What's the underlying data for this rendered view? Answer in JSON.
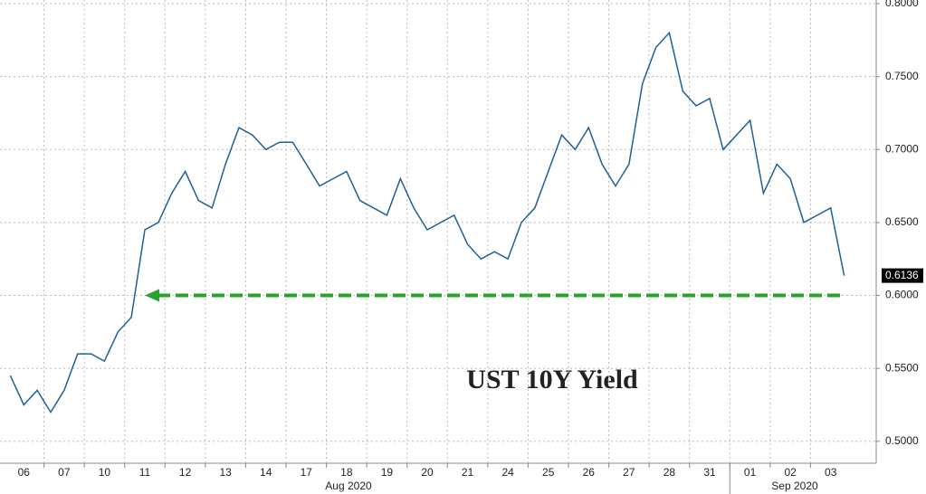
{
  "chart_data": {
    "type": "line",
    "categories": [
      null,
      "06",
      null,
      null,
      "07",
      null,
      null,
      "10",
      null,
      null,
      "11",
      null,
      null,
      "12",
      null,
      null,
      "13",
      null,
      null,
      "14",
      null,
      null,
      "17",
      null,
      null,
      "18",
      null,
      null,
      "19",
      null,
      null,
      "20",
      null,
      null,
      "21",
      null,
      null,
      "24",
      null,
      null,
      "25",
      null,
      null,
      "26",
      null,
      null,
      "27",
      null,
      null,
      "28",
      null,
      null,
      "31",
      null,
      null,
      "01",
      null,
      null,
      "02",
      null,
      null,
      "03",
      null
    ],
    "x_groups": [
      "Aug 2020",
      "Sep 2020"
    ],
    "series": [
      {
        "name": "UST 10Y Yield",
        "color": "#1f5f99",
        "values": [
          0.545,
          0.525,
          0.535,
          0.52,
          0.535,
          0.56,
          0.56,
          0.555,
          0.575,
          0.585,
          0.645,
          0.65,
          0.67,
          0.685,
          0.665,
          0.66,
          0.69,
          0.715,
          0.71,
          0.7,
          0.705,
          0.705,
          0.69,
          0.675,
          0.68,
          0.685,
          0.665,
          0.66,
          0.655,
          0.68,
          0.66,
          0.645,
          0.65,
          0.655,
          0.635,
          0.625,
          0.63,
          0.625,
          0.65,
          0.66,
          0.685,
          0.71,
          0.7,
          0.715,
          0.69,
          0.675,
          0.69,
          0.745,
          0.77,
          0.78,
          0.74,
          0.73,
          0.735,
          0.7,
          0.71,
          0.72,
          0.67,
          0.69,
          0.68,
          0.65,
          0.655,
          0.66,
          0.6136
        ]
      }
    ],
    "annotation": "UST 10Y Yield",
    "reference_line": {
      "value": 0.6,
      "color": "#2ca02c"
    },
    "ylim": [
      0.485,
      0.8025
    ],
    "yticks": [
      {
        "value": 0.5,
        "label": "0.5000"
      },
      {
        "value": 0.55,
        "label": "0.5500"
      },
      {
        "value": 0.6,
        "label": "0.6000"
      },
      {
        "value": 0.65,
        "label": "0.6500"
      },
      {
        "value": 0.7,
        "label": "0.7000"
      },
      {
        "value": 0.75,
        "label": "0.7500"
      },
      {
        "value": 0.8,
        "label": "0.8000"
      }
    ],
    "grid": true
  }
}
